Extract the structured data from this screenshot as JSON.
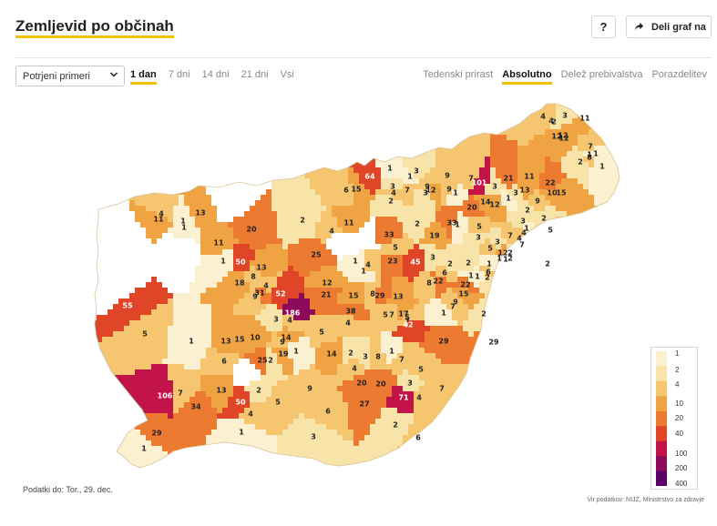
{
  "header": {
    "title": "Zemljevid po občinah",
    "help_label": "?",
    "share_label": "Deli graf na"
  },
  "controls": {
    "metric_select": "Potrjeni primeri",
    "periods": [
      "1 dan",
      "7 dni",
      "14 dni",
      "21 dni",
      "Vsi"
    ],
    "active_period": "1 dan",
    "modes": [
      "Tedenski prirast",
      "Absolutno",
      "Delež prebivalstva",
      "Porazdelitev"
    ],
    "active_mode": "Absolutno"
  },
  "legend": {
    "ticks": [
      "1",
      "2",
      "4",
      "10",
      "20",
      "40",
      "100",
      "200",
      "400"
    ],
    "colors": [
      "#fbf0cf",
      "#f8e3a8",
      "#f5c56f",
      "#f0a343",
      "#ec7a30",
      "#e04528",
      "#c3144a",
      "#8e0a5b",
      "#5c0066"
    ]
  },
  "map": {
    "name": "Slovenija – občine",
    "labels": [
      "64",
      "1",
      "101",
      "3",
      "7",
      "4",
      "6",
      "12",
      "3",
      "11",
      "8",
      "2",
      "7",
      "1",
      "1",
      "9",
      "15",
      "2",
      "1",
      "3",
      "9",
      "3",
      "9",
      "7",
      "3",
      "22",
      "21",
      "11",
      "1",
      "15",
      "12",
      "20",
      "3",
      "2",
      "1",
      "3",
      "9",
      "13",
      "10",
      "2",
      "14",
      "12",
      "4",
      "2",
      "4",
      "1",
      "12",
      "5",
      "2",
      "7",
      "1",
      "1",
      "2",
      "1",
      "13",
      "11",
      "11",
      "1",
      "1",
      "33",
      "2",
      "4",
      "2",
      "20",
      "4",
      "12",
      "33",
      "5",
      "3",
      "4",
      "11",
      "5",
      "19",
      "12",
      "4",
      "7",
      "5",
      "1",
      "3",
      "2",
      "25",
      "50",
      "13",
      "1",
      "23",
      "45",
      "3",
      "2",
      "1",
      "1",
      "2",
      "1",
      "1",
      "4",
      "18",
      "8",
      "4",
      "22",
      "22",
      "6",
      "2",
      "1",
      "6",
      "52",
      "12",
      "21",
      "8",
      "13",
      "15",
      "8",
      "9",
      "31",
      "3",
      "15",
      "29",
      "7",
      "9",
      "1",
      "5",
      "186",
      "38",
      "7",
      "4",
      "5",
      "4",
      "14",
      "7",
      "17",
      "2",
      "5",
      "1",
      "55",
      "29",
      "42",
      "29",
      "5",
      "13",
      "15",
      "10",
      "25",
      "2",
      "6",
      "1",
      "9",
      "19",
      "14",
      "2",
      "3",
      "8",
      "1",
      "7",
      "4",
      "20",
      "5",
      "7",
      "4",
      "3",
      "106",
      "34",
      "7",
      "2",
      "1",
      "13",
      "4",
      "9",
      "50",
      "3",
      "5",
      "6",
      "27",
      "20",
      "71",
      "2",
      "6",
      "29",
      "1"
    ],
    "label_colors": [
      "#ffffff",
      "#222222"
    ]
  },
  "footer": {
    "updated": "Podatki do: Tor., 29. dec.",
    "source": "Vir podatkov: NIJZ, Ministrstvo za zdravje"
  }
}
